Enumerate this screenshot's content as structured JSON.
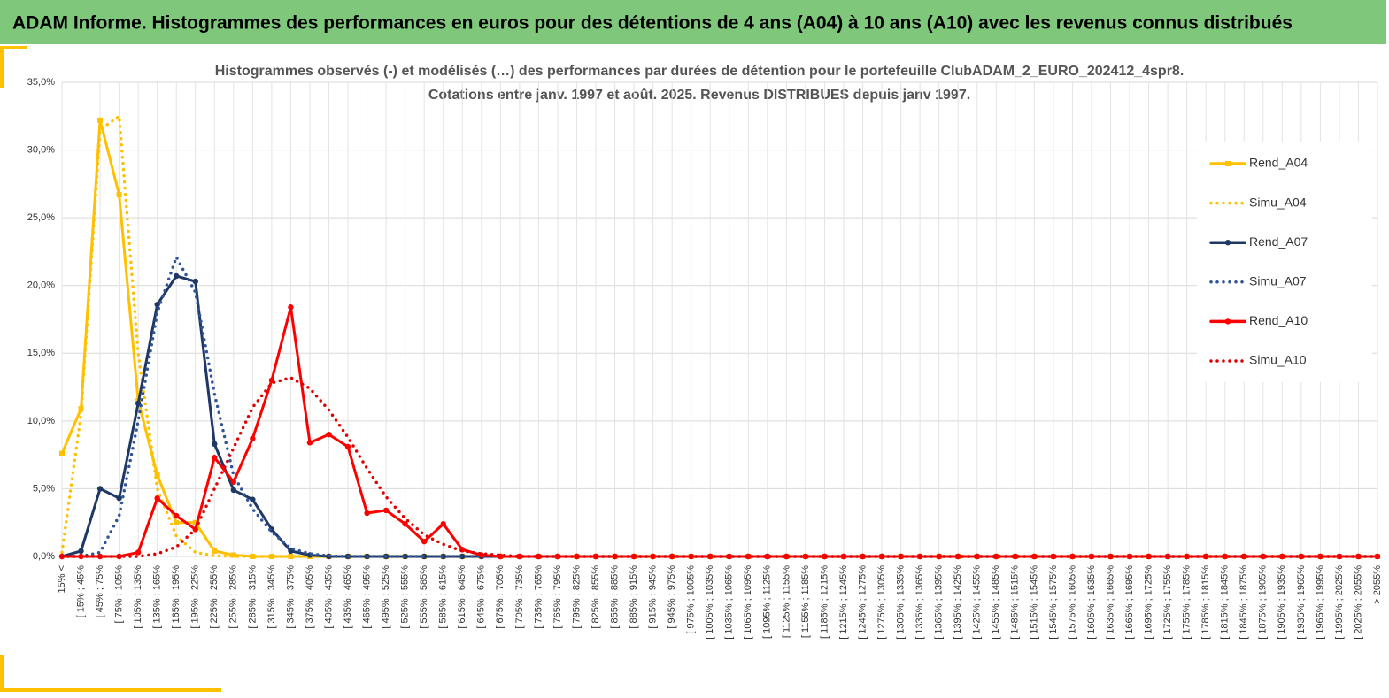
{
  "header": {
    "title": "ADAM Informe. Histogrammes des performances en euros pour des détentions de 4 ans (A04) à 10 ans (A10) avec les revenus connus distribués"
  },
  "chart_data": {
    "type": "line",
    "title": "Histogrammes observés (-) et modélisés (…) des performances par durées de détention pour  le portefeuille ClubADAM_2_EURO_202412_4spr8.",
    "subtitle": "Cotations entre janv. 1997 et août. 2025. Revenus DISTRIBUES depuis janv 1997.",
    "categories": [
      "15% <",
      "[ 15% ; 45%",
      "[ 45% ; 75%",
      "[ 75% ; 105%",
      "[ 105% ; 135%",
      "[ 135% ; 165%",
      "[ 165% ; 195%",
      "[ 195% ; 225%",
      "[ 225% ; 255%",
      "[ 255% ; 285%",
      "[ 285% ; 315%",
      "[ 315% ; 345%",
      "[ 345% ; 375%",
      "[ 375% ; 405%",
      "[ 405% ; 435%",
      "[ 435% ; 465%",
      "[ 465% ; 495%",
      "[ 495% ; 525%",
      "[ 525% ; 555%",
      "[ 555% ; 585%",
      "[ 585% ; 615%",
      "[ 615% ; 645%",
      "[ 645% ; 675%",
      "[ 675% ; 705%",
      "[ 705% ; 735%",
      "[ 735% ; 765%",
      "[ 765% ; 795%",
      "[ 795% ; 825%",
      "[ 825% ; 855%",
      "[ 855% ; 885%",
      "[ 885% ; 915%",
      "[ 915% ; 945%",
      "[ 945% ; 975%",
      "[ 975% ; 1005%",
      "[ 1005% ; 1035%",
      "[ 1035% ; 1065%",
      "[ 1065% ; 1095%",
      "[ 1095% ; 1125%",
      "[ 1125% ; 1155%",
      "[ 1155% ; 1185%",
      "[ 1185% ; 1215%",
      "[ 1215% ; 1245%",
      "[ 1245% ; 1275%",
      "[ 1275% ; 1305%",
      "[ 1305% ; 1335%",
      "[ 1335% ; 1365%",
      "[ 1365% ; 1395%",
      "[ 1395% ; 1425%",
      "[ 1425% ; 1455%",
      "[ 1455% ; 1485%",
      "[ 1485% ; 1515%",
      "[ 1515% ; 1545%",
      "[ 1545% ; 1575%",
      "[ 1575% ; 1605%",
      "[ 1605% ; 1635%",
      "[ 1635% ; 1665%",
      "[ 1665% ; 1695%",
      "[ 1695% ; 1725%",
      "[ 1725% ; 1755%",
      "[ 1755% ; 1785%",
      "[ 1785% ; 1815%",
      "[ 1815% ; 1845%",
      "[ 1845% ; 1875%",
      "[ 1875% ; 1905%",
      "[ 1905% ; 1935%",
      "[ 1935% ; 1965%",
      "[ 1965% ; 1995%",
      "[ 1995% ; 2025%",
      "[ 2025% ; 2055%",
      "> 2055%"
    ],
    "series": [
      {
        "name": "Rend_A04",
        "color": "#ffc000",
        "style": "solid",
        "marker": "square",
        "values": [
          7.6,
          10.9,
          32.2,
          26.7,
          11.5,
          6.0,
          2.5,
          2.5,
          0.4,
          0.1,
          0,
          0,
          0,
          0,
          0,
          0,
          0,
          0,
          0,
          0,
          0,
          0,
          0,
          0,
          0,
          0,
          0,
          0,
          0,
          0,
          0,
          0,
          0,
          0,
          0,
          0,
          0,
          0,
          0,
          0,
          0,
          0,
          0,
          0,
          0,
          0,
          0,
          0,
          0,
          0,
          0,
          0,
          0,
          0,
          0,
          0,
          0,
          0,
          0,
          0,
          0,
          0,
          0,
          0,
          0,
          0,
          0,
          0,
          0,
          0
        ]
      },
      {
        "name": "Simu_A04",
        "color": "#ffc000",
        "style": "dotted",
        "values": [
          0.3,
          10.5,
          31.5,
          32.5,
          15,
          5,
          1.5,
          0.3,
          0.05,
          0,
          0,
          0,
          0,
          0,
          0,
          0,
          0,
          0,
          0,
          0,
          0,
          0,
          0,
          0,
          0,
          0,
          0,
          0,
          0,
          0,
          0,
          0,
          0,
          0,
          0,
          0,
          0,
          0,
          0,
          0,
          0,
          0,
          0,
          0,
          0,
          0,
          0,
          0,
          0,
          0,
          0,
          0,
          0,
          0,
          0,
          0,
          0,
          0,
          0,
          0,
          0,
          0,
          0,
          0,
          0,
          0,
          0,
          0,
          0,
          0
        ]
      },
      {
        "name": "Rend_A07",
        "color": "#1f3864",
        "style": "solid",
        "marker": "circle",
        "values": [
          0,
          0.4,
          5.0,
          4.3,
          11.3,
          18.6,
          20.7,
          20.3,
          8.3,
          4.9,
          4.2,
          2.0,
          0.4,
          0.1,
          0,
          0,
          0,
          0,
          0,
          0,
          0,
          0,
          0,
          0,
          0,
          0,
          0,
          0,
          0,
          0,
          0,
          0,
          0,
          0,
          0,
          0,
          0,
          0,
          0,
          0,
          0,
          0,
          0,
          0,
          0,
          0,
          0,
          0,
          0,
          0,
          0,
          0,
          0,
          0,
          0,
          0,
          0,
          0,
          0,
          0,
          0,
          0,
          0,
          0,
          0,
          0,
          0,
          0,
          0,
          0
        ]
      },
      {
        "name": "Simu_A07",
        "color": "#2f5597",
        "style": "dotted",
        "values": [
          0,
          0,
          0.3,
          3,
          10,
          18,
          22.1,
          19.5,
          12,
          6,
          3.5,
          1.8,
          0.6,
          0.2,
          0.05,
          0,
          0,
          0,
          0,
          0,
          0,
          0,
          0,
          0,
          0,
          0,
          0,
          0,
          0,
          0,
          0,
          0,
          0,
          0,
          0,
          0,
          0,
          0,
          0,
          0,
          0,
          0,
          0,
          0,
          0,
          0,
          0,
          0,
          0,
          0,
          0,
          0,
          0,
          0,
          0,
          0,
          0,
          0,
          0,
          0,
          0,
          0,
          0,
          0,
          0,
          0,
          0,
          0,
          0,
          0
        ]
      },
      {
        "name": "Rend_A10",
        "color": "#ff0000",
        "style": "solid",
        "marker": "circle",
        "values": [
          0,
          0,
          0,
          0,
          0.3,
          4.3,
          3.0,
          2.0,
          7.3,
          5.5,
          8.7,
          13.0,
          18.4,
          8.4,
          9.0,
          8.1,
          3.2,
          3.4,
          2.4,
          1.1,
          2.4,
          0.5,
          0.1,
          0,
          0,
          0,
          0,
          0,
          0,
          0,
          0,
          0,
          0,
          0,
          0,
          0,
          0,
          0,
          0,
          0,
          0,
          0,
          0,
          0,
          0,
          0,
          0,
          0,
          0,
          0,
          0,
          0,
          0,
          0,
          0,
          0,
          0,
          0,
          0,
          0,
          0,
          0,
          0,
          0,
          0,
          0,
          0,
          0,
          0,
          0
        ]
      },
      {
        "name": "Simu_A10",
        "color": "#e00000",
        "style": "dotted",
        "values": [
          0,
          0,
          0,
          0,
          0,
          0.2,
          0.7,
          2,
          5,
          8,
          11,
          12.8,
          13.2,
          12.4,
          10.8,
          8.8,
          6.5,
          4.4,
          2.8,
          1.6,
          0.9,
          0.4,
          0.2,
          0.1,
          0,
          0,
          0,
          0,
          0,
          0,
          0,
          0,
          0,
          0,
          0,
          0,
          0,
          0,
          0,
          0,
          0,
          0,
          0,
          0,
          0,
          0,
          0,
          0,
          0,
          0,
          0,
          0,
          0,
          0,
          0,
          0,
          0,
          0,
          0,
          0,
          0,
          0,
          0,
          0,
          0,
          0,
          0,
          0,
          0,
          0
        ]
      }
    ],
    "ylim": [
      0,
      35
    ],
    "yticks": [
      {
        "value": 0,
        "label": "0,0%"
      },
      {
        "value": 5,
        "label": "5,0%"
      },
      {
        "value": 10,
        "label": "10,0%"
      },
      {
        "value": 15,
        "label": "15,0%"
      },
      {
        "value": 20,
        "label": "20,0%"
      },
      {
        "value": 25,
        "label": "25,0%"
      },
      {
        "value": 30,
        "label": "30,0%"
      },
      {
        "value": 35,
        "label": "35,0%"
      }
    ],
    "grid": true,
    "legend": "right"
  }
}
